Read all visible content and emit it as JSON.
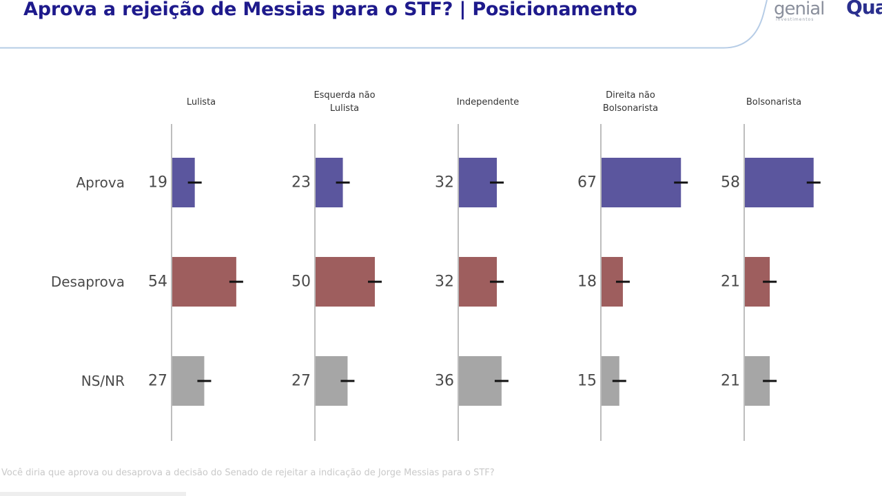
{
  "header": {
    "title": "Aprova a rejeição de Messias para o STF? | Posicionamento",
    "logo_genial": "genial",
    "logo_genial_sub": "investimentos",
    "logo_quaest": "Quaest"
  },
  "chart_data": {
    "type": "bar",
    "orientation": "horizontal",
    "categories": [
      "Aprova",
      "Desaprova",
      "NS/NR"
    ],
    "panels": [
      {
        "name": "Lulista",
        "values": [
          19,
          54,
          27
        ]
      },
      {
        "name": "Esquerda não Lulista",
        "values": [
          23,
          50,
          27
        ]
      },
      {
        "name": "Independente",
        "values": [
          32,
          32,
          36
        ]
      },
      {
        "name": "Direita não Bolsonarista",
        "values": [
          67,
          18,
          15
        ]
      },
      {
        "name": "Bolsonarista",
        "values": [
          58,
          21,
          21
        ]
      }
    ],
    "colors": [
      "#5b569e",
      "#9e5e5e",
      "#a6a6a6"
    ],
    "error_bars": true,
    "xlim": [
      0,
      100
    ]
  },
  "footnote": "Você diria que aprova ou desaprova a decisão do Senado de rejeitar a indicação de Jorge Messias para o STF?"
}
